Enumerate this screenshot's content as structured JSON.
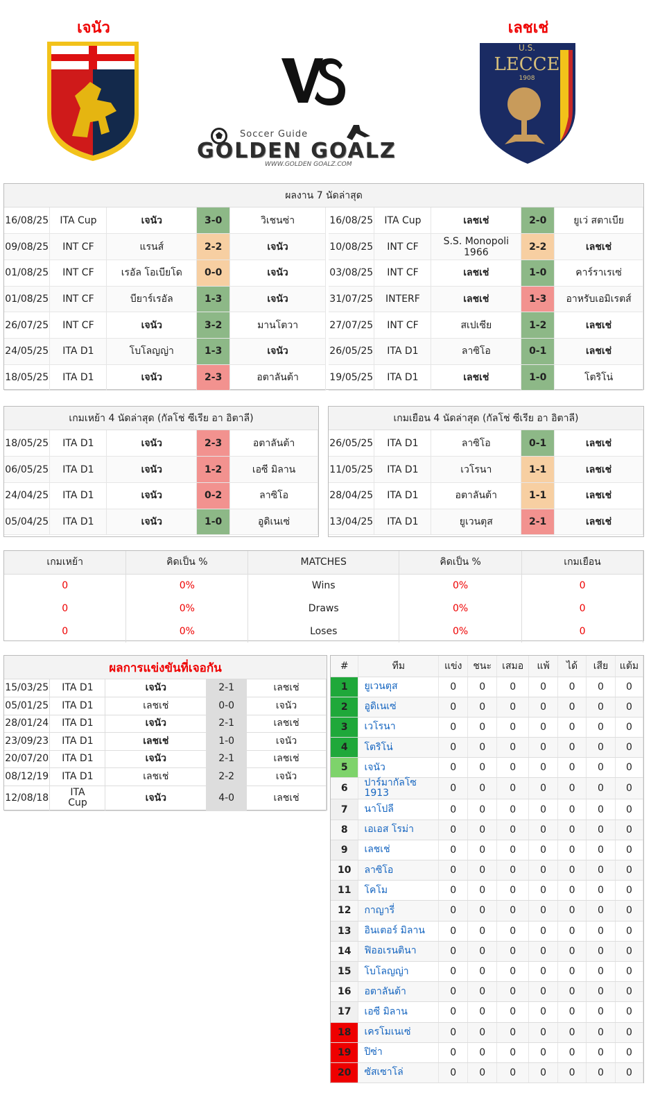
{
  "header": {
    "home_team": "เจนัว",
    "away_team": "เลชเช่",
    "vs_text": "VS",
    "logo_brand": "GOLDEN GOALZ",
    "logo_tagline": "Soccer Guide",
    "logo_url": "WWW.GOLDEN GOALZ.COM",
    "away_crest_top": "U.S.",
    "away_crest_name": "LECCE",
    "away_crest_year": "1908"
  },
  "recent": {
    "title": "ผลงาน 7 นัดล่าสุด",
    "home": [
      {
        "date": "16/08/25",
        "comp": "ITA Cup",
        "home": "เจนัว",
        "score": "3-0",
        "away": "วิเชนซ่า",
        "res": "g",
        "bold": "home"
      },
      {
        "date": "09/08/25",
        "comp": "INT CF",
        "home": "แรนส์",
        "score": "2-2",
        "away": "เจนัว",
        "res": "o",
        "bold": "away"
      },
      {
        "date": "01/08/25",
        "comp": "INT CF",
        "home": "เรอัล โอเบียโด",
        "score": "0-0",
        "away": "เจนัว",
        "res": "o",
        "bold": "away"
      },
      {
        "date": "01/08/25",
        "comp": "INT CF",
        "home": "บียาร์เรอัล",
        "score": "1-3",
        "away": "เจนัว",
        "res": "g",
        "bold": "away"
      },
      {
        "date": "26/07/25",
        "comp": "INT CF",
        "home": "เจนัว",
        "score": "3-2",
        "away": "มานโตวา",
        "res": "g",
        "bold": "home"
      },
      {
        "date": "24/05/25",
        "comp": "ITA D1",
        "home": "โบโลญญ่า",
        "score": "1-3",
        "away": "เจนัว",
        "res": "g",
        "bold": "away"
      },
      {
        "date": "18/05/25",
        "comp": "ITA D1",
        "home": "เจนัว",
        "score": "2-3",
        "away": "อตาลันต้า",
        "res": "r",
        "bold": "home"
      }
    ],
    "away": [
      {
        "date": "16/08/25",
        "comp": "ITA Cup",
        "home": "เลชเช่",
        "score": "2-0",
        "away": "ยูเว่ สตาเบีย",
        "res": "g",
        "bold": "home"
      },
      {
        "date": "10/08/25",
        "comp": "INT CF",
        "home": "S.S. Monopoli 1966",
        "score": "2-2",
        "away": "เลชเช่",
        "res": "o",
        "bold": "away"
      },
      {
        "date": "03/08/25",
        "comp": "INT CF",
        "home": "เลชเช่",
        "score": "1-0",
        "away": "คาร์ราเรเซ่",
        "res": "g",
        "bold": "home"
      },
      {
        "date": "31/07/25",
        "comp": "INTERF",
        "home": "เลชเช่",
        "score": "1-3",
        "away": "อาหรับเอมิเรตส์",
        "res": "r",
        "bold": "home"
      },
      {
        "date": "27/07/25",
        "comp": "INT CF",
        "home": "สเปเซีย",
        "score": "1-2",
        "away": "เลชเช่",
        "res": "g",
        "bold": "away"
      },
      {
        "date": "26/05/25",
        "comp": "ITA D1",
        "home": "ลาซิโอ",
        "score": "0-1",
        "away": "เลชเช่",
        "res": "g",
        "bold": "away"
      },
      {
        "date": "19/05/25",
        "comp": "ITA D1",
        "home": "เลชเช่",
        "score": "1-0",
        "away": "โตริโน่",
        "res": "g",
        "bold": "home"
      }
    ]
  },
  "league_recent": {
    "home_title": "เกมเหย้า 4 นัดล่าสุด (กัลโช่ ซีเรีย อา อิตาลี)",
    "away_title": "เกมเยือน 4 นัดล่าสุด (กัลโช่ ซีเรีย อา อิตาลี)",
    "home": [
      {
        "date": "18/05/25",
        "comp": "ITA D1",
        "home": "เจนัว",
        "score": "2-3",
        "away": "อตาลันต้า",
        "res": "r",
        "bold": "home"
      },
      {
        "date": "06/05/25",
        "comp": "ITA D1",
        "home": "เจนัว",
        "score": "1-2",
        "away": "เอซี มิลาน",
        "res": "r",
        "bold": "home"
      },
      {
        "date": "24/04/25",
        "comp": "ITA D1",
        "home": "เจนัว",
        "score": "0-2",
        "away": "ลาซิโอ",
        "res": "r",
        "bold": "home"
      },
      {
        "date": "05/04/25",
        "comp": "ITA D1",
        "home": "เจนัว",
        "score": "1-0",
        "away": "อูดิเนเซ่",
        "res": "g",
        "bold": "home"
      }
    ],
    "away": [
      {
        "date": "26/05/25",
        "comp": "ITA D1",
        "home": "ลาซิโอ",
        "score": "0-1",
        "away": "เลชเช่",
        "res": "g",
        "bold": "away"
      },
      {
        "date": "11/05/25",
        "comp": "ITA D1",
        "home": "เวโรนา",
        "score": "1-1",
        "away": "เลชเช่",
        "res": "o",
        "bold": "away"
      },
      {
        "date": "28/04/25",
        "comp": "ITA D1",
        "home": "อตาลันต้า",
        "score": "1-1",
        "away": "เลชเช่",
        "res": "o",
        "bold": "away"
      },
      {
        "date": "13/04/25",
        "comp": "ITA D1",
        "home": "ยูเวนตุส",
        "score": "2-1",
        "away": "เลชเช่",
        "res": "r",
        "bold": "away"
      }
    ]
  },
  "summary": {
    "headers": [
      "เกมเหย้า",
      "คิดเป็น %",
      "MATCHES",
      "คิดเป็น %",
      "เกมเยือน"
    ],
    "rows": [
      {
        "home": "0",
        "home_pct": "0%",
        "label": "Wins",
        "away_pct": "0%",
        "away": "0"
      },
      {
        "home": "0",
        "home_pct": "0%",
        "label": "Draws",
        "away_pct": "0%",
        "away": "0"
      },
      {
        "home": "0",
        "home_pct": "0%",
        "label": "Loses",
        "away_pct": "0%",
        "away": "0"
      }
    ]
  },
  "h2h": {
    "title": "ผลการแข่งขันที่เจอกัน",
    "rows": [
      {
        "date": "15/03/25",
        "comp": "ITA D1",
        "home": "เจนัว",
        "score": "2-1",
        "away": "เลชเช่",
        "bold": "home"
      },
      {
        "date": "05/01/25",
        "comp": "ITA D1",
        "home": "เลชเช่",
        "score": "0-0",
        "away": "เจนัว",
        "bold": ""
      },
      {
        "date": "28/01/24",
        "comp": "ITA D1",
        "home": "เจนัว",
        "score": "2-1",
        "away": "เลชเช่",
        "bold": "home"
      },
      {
        "date": "23/09/23",
        "comp": "ITA D1",
        "home": "เลชเช่",
        "score": "1-0",
        "away": "เจนัว",
        "bold": "home"
      },
      {
        "date": "20/07/20",
        "comp": "ITA D1",
        "home": "เจนัว",
        "score": "2-1",
        "away": "เลชเช่",
        "bold": "home"
      },
      {
        "date": "08/12/19",
        "comp": "ITA D1",
        "home": "เลชเช่",
        "score": "2-2",
        "away": "เจนัว",
        "bold": ""
      },
      {
        "date": "12/08/18",
        "comp": "ITA Cup",
        "home": "เจนัว",
        "score": "4-0",
        "away": "เลชเช่",
        "bold": "home"
      }
    ]
  },
  "standings": {
    "headers": [
      "#",
      "ทีม",
      "แข่ง",
      "ชนะ",
      "เสมอ",
      "แพ้",
      "ได้",
      "เสีย",
      "แต้ม"
    ],
    "rows": [
      {
        "rank": "1",
        "team": "ยูเวนตุส",
        "zone": "rg",
        "p": "0",
        "w": "0",
        "d": "0",
        "l": "0",
        "gf": "0",
        "ga": "0",
        "pts": "0"
      },
      {
        "rank": "2",
        "team": "อูดิเนเซ่",
        "zone": "rg",
        "p": "0",
        "w": "0",
        "d": "0",
        "l": "0",
        "gf": "0",
        "ga": "0",
        "pts": "0"
      },
      {
        "rank": "3",
        "team": "เวโรนา",
        "zone": "rg",
        "p": "0",
        "w": "0",
        "d": "0",
        "l": "0",
        "gf": "0",
        "ga": "0",
        "pts": "0"
      },
      {
        "rank": "4",
        "team": "โตริโน่",
        "zone": "rg",
        "p": "0",
        "w": "0",
        "d": "0",
        "l": "0",
        "gf": "0",
        "ga": "0",
        "pts": "0"
      },
      {
        "rank": "5",
        "team": "เจนัว",
        "zone": "rlg",
        "p": "0",
        "w": "0",
        "d": "0",
        "l": "0",
        "gf": "0",
        "ga": "0",
        "pts": "0"
      },
      {
        "rank": "6",
        "team": "ปาร์มากัลโซ 1913",
        "zone": "",
        "p": "0",
        "w": "0",
        "d": "0",
        "l": "0",
        "gf": "0",
        "ga": "0",
        "pts": "0"
      },
      {
        "rank": "7",
        "team": "นาโปลี",
        "zone": "",
        "p": "0",
        "w": "0",
        "d": "0",
        "l": "0",
        "gf": "0",
        "ga": "0",
        "pts": "0"
      },
      {
        "rank": "8",
        "team": "เอเอส โรม่า",
        "zone": "",
        "p": "0",
        "w": "0",
        "d": "0",
        "l": "0",
        "gf": "0",
        "ga": "0",
        "pts": "0"
      },
      {
        "rank": "9",
        "team": "เลชเช่",
        "zone": "",
        "p": "0",
        "w": "0",
        "d": "0",
        "l": "0",
        "gf": "0",
        "ga": "0",
        "pts": "0"
      },
      {
        "rank": "10",
        "team": "ลาซิโอ",
        "zone": "",
        "p": "0",
        "w": "0",
        "d": "0",
        "l": "0",
        "gf": "0",
        "ga": "0",
        "pts": "0"
      },
      {
        "rank": "11",
        "team": "โคโม",
        "zone": "",
        "p": "0",
        "w": "0",
        "d": "0",
        "l": "0",
        "gf": "0",
        "ga": "0",
        "pts": "0"
      },
      {
        "rank": "12",
        "team": "กาญารี่",
        "zone": "",
        "p": "0",
        "w": "0",
        "d": "0",
        "l": "0",
        "gf": "0",
        "ga": "0",
        "pts": "0"
      },
      {
        "rank": "13",
        "team": "อินเตอร์ มิลาน",
        "zone": "",
        "p": "0",
        "w": "0",
        "d": "0",
        "l": "0",
        "gf": "0",
        "ga": "0",
        "pts": "0"
      },
      {
        "rank": "14",
        "team": "ฟิออเรนตินา",
        "zone": "",
        "p": "0",
        "w": "0",
        "d": "0",
        "l": "0",
        "gf": "0",
        "ga": "0",
        "pts": "0"
      },
      {
        "rank": "15",
        "team": "โบโลญญ่า",
        "zone": "",
        "p": "0",
        "w": "0",
        "d": "0",
        "l": "0",
        "gf": "0",
        "ga": "0",
        "pts": "0"
      },
      {
        "rank": "16",
        "team": "อตาลันต้า",
        "zone": "",
        "p": "0",
        "w": "0",
        "d": "0",
        "l": "0",
        "gf": "0",
        "ga": "0",
        "pts": "0"
      },
      {
        "rank": "17",
        "team": "เอซี มิลาน",
        "zone": "",
        "p": "0",
        "w": "0",
        "d": "0",
        "l": "0",
        "gf": "0",
        "ga": "0",
        "pts": "0"
      },
      {
        "rank": "18",
        "team": "เครโมเนเซ่",
        "zone": "rr",
        "p": "0",
        "w": "0",
        "d": "0",
        "l": "0",
        "gf": "0",
        "ga": "0",
        "pts": "0"
      },
      {
        "rank": "19",
        "team": "ปิซ่า",
        "zone": "rr",
        "p": "0",
        "w": "0",
        "d": "0",
        "l": "0",
        "gf": "0",
        "ga": "0",
        "pts": "0"
      },
      {
        "rank": "20",
        "team": "ซัสเซาโล่",
        "zone": "rr",
        "p": "0",
        "w": "0",
        "d": "0",
        "l": "0",
        "gf": "0",
        "ga": "0",
        "pts": "0"
      }
    ]
  }
}
